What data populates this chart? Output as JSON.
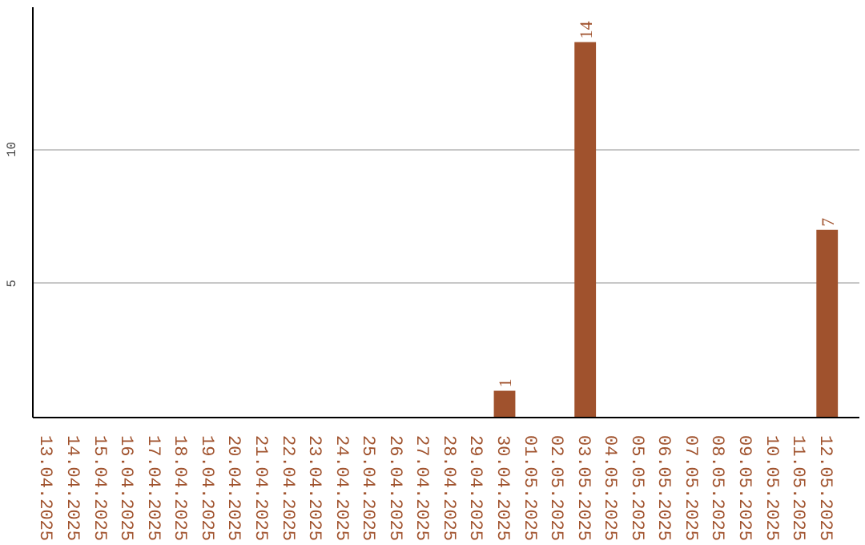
{
  "chart_data": {
    "type": "bar",
    "categories": [
      "13.04.2025",
      "14.04.2025",
      "15.04.2025",
      "16.04.2025",
      "17.04.2025",
      "18.04.2025",
      "19.04.2025",
      "20.04.2025",
      "21.04.2025",
      "22.04.2025",
      "23.04.2025",
      "24.04.2025",
      "25.04.2025",
      "26.04.2025",
      "27.04.2025",
      "28.04.2025",
      "29.04.2025",
      "30.04.2025",
      "01.05.2025",
      "02.05.2025",
      "03.05.2025",
      "04.05.2025",
      "05.05.2025",
      "06.05.2025",
      "07.05.2025",
      "08.05.2025",
      "09.05.2025",
      "10.05.2025",
      "11.05.2025",
      "12.05.2025"
    ],
    "values": [
      0,
      0,
      0,
      0,
      0,
      0,
      0,
      0,
      0,
      0,
      0,
      0,
      0,
      0,
      0,
      0,
      0,
      1,
      0,
      0,
      14,
      0,
      0,
      0,
      0,
      0,
      0,
      0,
      0,
      7
    ],
    "color": "#a0522d",
    "ylim": [
      0,
      15.3
    ],
    "yticks": [
      5,
      10
    ],
    "grid": "y",
    "value_labels": [
      null,
      null,
      null,
      null,
      null,
      null,
      null,
      null,
      null,
      null,
      null,
      null,
      null,
      null,
      null,
      null,
      null,
      "1",
      null,
      null,
      "14",
      null,
      null,
      null,
      null,
      null,
      null,
      null,
      null,
      "7"
    ]
  }
}
